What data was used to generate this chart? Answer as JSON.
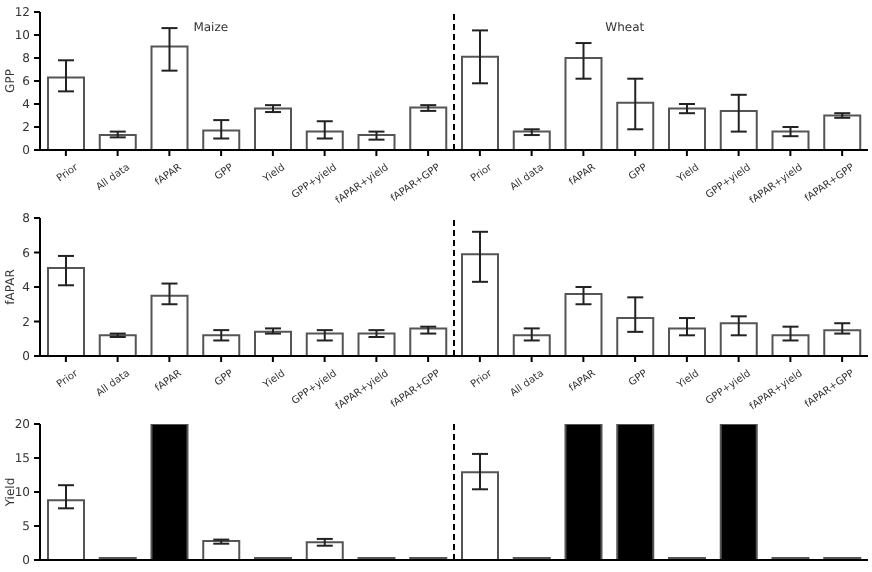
{
  "chart_data": [
    {
      "type": "bar",
      "ylabel": "GPP",
      "categories": [
        "Prior",
        "All data",
        "fAPAR",
        "GPP",
        "Yield",
        "GPP+yield",
        "fAPAR+yield",
        "fAPAR+GPP",
        "Prior",
        "All data",
        "fAPAR",
        "GPP",
        "Yield",
        "GPP+yield",
        "fAPAR+yield",
        "fAPAR+GPP"
      ],
      "values": [
        6.3,
        1.3,
        9.0,
        1.7,
        3.6,
        1.6,
        1.3,
        3.7,
        8.1,
        1.6,
        8.0,
        4.1,
        3.6,
        3.4,
        1.6,
        3.0
      ],
      "errors": [
        [
          5.1,
          7.8
        ],
        [
          1.1,
          1.6
        ],
        [
          6.9,
          10.6
        ],
        [
          1.0,
          2.6
        ],
        [
          3.3,
          3.9
        ],
        [
          1.0,
          2.5
        ],
        [
          0.9,
          1.6
        ],
        [
          3.4,
          3.9
        ],
        [
          5.8,
          10.4
        ],
        [
          1.3,
          1.8
        ],
        [
          6.2,
          9.3
        ],
        [
          1.8,
          6.2
        ],
        [
          3.2,
          4.0
        ],
        [
          1.6,
          4.8
        ],
        [
          1.2,
          2.0
        ],
        [
          2.8,
          3.2
        ]
      ],
      "color": "#ffffff",
      "ylim": [
        0,
        12
      ],
      "yticks": [
        0,
        2,
        4,
        6,
        8,
        10,
        12
      ],
      "annotations": [
        "Maize",
        "Wheat"
      ]
    },
    {
      "type": "bar",
      "ylabel": "fAPAR",
      "categories": [
        "Prior",
        "All data",
        "fAPAR",
        "GPP",
        "Yield",
        "GPP+yield",
        "fAPAR+yield",
        "fAPAR+GPP",
        "Prior",
        "All data",
        "fAPAR",
        "GPP",
        "Yield",
        "GPP+yield",
        "fAPAR+yield",
        "fAPAR+GPP"
      ],
      "values": [
        5.1,
        1.2,
        3.5,
        1.2,
        1.4,
        1.3,
        1.3,
        1.6,
        5.9,
        1.2,
        3.6,
        2.2,
        1.6,
        1.9,
        1.2,
        1.5
      ],
      "errors": [
        [
          4.1,
          5.8
        ],
        [
          1.1,
          1.3
        ],
        [
          3.0,
          4.2
        ],
        [
          0.9,
          1.5
        ],
        [
          1.3,
          1.6
        ],
        [
          0.9,
          1.5
        ],
        [
          1.1,
          1.5
        ],
        [
          1.3,
          1.7
        ],
        [
          4.3,
          7.2
        ],
        [
          0.9,
          1.6
        ],
        [
          3.0,
          4.0
        ],
        [
          1.4,
          3.4
        ],
        [
          1.2,
          2.2
        ],
        [
          1.2,
          2.3
        ],
        [
          0.9,
          1.7
        ],
        [
          1.3,
          1.9
        ]
      ],
      "color": "#ffffff",
      "ylim": [
        0,
        8
      ],
      "yticks": [
        0,
        2,
        4,
        6,
        8
      ]
    },
    {
      "type": "bar",
      "ylabel": "Yield",
      "categories": [
        null,
        null,
        null,
        null,
        null,
        null,
        null,
        null,
        null,
        null,
        null,
        null,
        null,
        null,
        null,
        null
      ],
      "values": [
        8.8,
        0.3,
        20,
        2.8,
        0.3,
        2.6,
        0.3,
        0.3,
        12.9,
        0.3,
        20,
        20,
        0.3,
        20,
        0.3,
        0.3
      ],
      "errors": [
        [
          7.6,
          11.0
        ],
        null,
        null,
        [
          2.4,
          3.0
        ],
        null,
        [
          2.1,
          3.1
        ],
        null,
        null,
        [
          10.4,
          15.6
        ],
        null,
        null,
        null,
        null,
        null,
        null,
        null
      ],
      "colors": [
        "#ffffff",
        "#ffffff",
        "#000000",
        "#ffffff",
        "#ffffff",
        "#ffffff",
        "#ffffff",
        "#ffffff",
        "#ffffff",
        "#ffffff",
        "#000000",
        "#000000",
        "#ffffff",
        "#000000",
        "#ffffff",
        "#ffffff"
      ],
      "ylim": [
        0,
        20
      ],
      "yticks": [
        0,
        5,
        10,
        15,
        20
      ],
      "tick_labels": "y"
    }
  ]
}
